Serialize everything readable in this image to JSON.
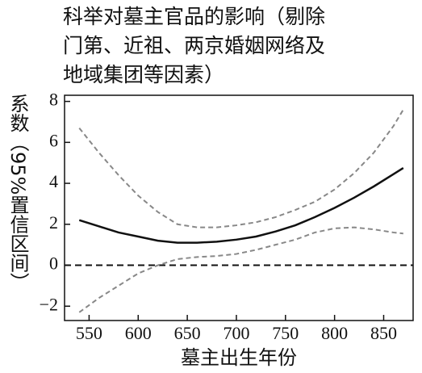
{
  "chart_data": {
    "type": "line",
    "title": [
      "科举对墓主官品的影响（剔除",
      "门第、近祖、两京婚姻网络及",
      "地域集团等因素）"
    ],
    "x_label": "墓主出生年份",
    "y_label": "系数（95%置信区间）",
    "x": [
      540,
      560,
      580,
      600,
      620,
      640,
      660,
      680,
      700,
      720,
      740,
      760,
      780,
      800,
      820,
      840,
      860,
      870
    ],
    "series": [
      {
        "color": "#111111",
        "dashed": false,
        "values": [
          2.2,
          1.9,
          1.6,
          1.4,
          1.2,
          1.1,
          1.1,
          1.15,
          1.25,
          1.4,
          1.65,
          1.95,
          2.35,
          2.8,
          3.3,
          3.85,
          4.45,
          4.75
        ]
      },
      {
        "color": "#888888",
        "dashed": true,
        "values": [
          6.7,
          5.5,
          4.4,
          3.4,
          2.6,
          2.0,
          1.85,
          1.85,
          1.95,
          2.1,
          2.35,
          2.7,
          3.1,
          3.7,
          4.5,
          5.5,
          6.8,
          7.6
        ]
      },
      {
        "color": "#888888",
        "dashed": true,
        "values": [
          -2.3,
          -1.6,
          -1.0,
          -0.4,
          0.0,
          0.3,
          0.4,
          0.45,
          0.55,
          0.75,
          1.0,
          1.25,
          1.6,
          1.8,
          1.85,
          1.75,
          1.6,
          1.55
        ]
      }
    ],
    "reference_line": 0,
    "xlim": [
      525,
      880
    ],
    "ylim": [
      -2.7,
      8.3
    ],
    "xticks": [
      550,
      600,
      650,
      700,
      750,
      800,
      850
    ],
    "yticks": [
      {
        "value": -2,
        "label": "−2"
      },
      0,
      2,
      4,
      6,
      8
    ],
    "grid": false
  }
}
